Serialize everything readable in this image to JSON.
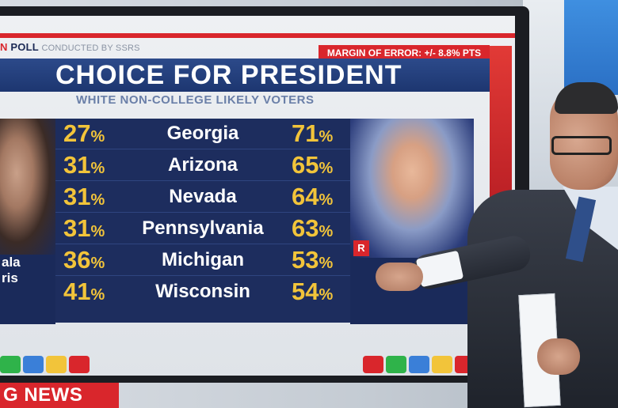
{
  "poll_label": {
    "prefix": "N",
    "main": "POLL",
    "suffix": "CONDUCTED BY SSRS"
  },
  "margin_of_error": "MARGIN OF ERROR: +/- 8.8% PTS",
  "title": "CHOICE FOR PRESIDENT",
  "subtitle": "WHITE NON-COLLEGE LIKELY VOTERS",
  "left_candidate": {
    "name_line1": "ala",
    "name_line2": "ris"
  },
  "right_candidate": {
    "badge": "R"
  },
  "rows": [
    {
      "state": "Georgia",
      "left": "27",
      "right": "71"
    },
    {
      "state": "Arizona",
      "left": "31",
      "right": "65"
    },
    {
      "state": "Nevada",
      "left": "31",
      "right": "64"
    },
    {
      "state": "Pennsylvania",
      "left": "31",
      "right": "63"
    },
    {
      "state": "Michigan",
      "left": "36",
      "right": "53"
    },
    {
      "state": "Wisconsin",
      "left": "41",
      "right": "54"
    }
  ],
  "percent_sign": "%",
  "ticker": "G NEWS",
  "colors": {
    "accent_red": "#d9262c",
    "navy": "#1d2d5e",
    "gold": "#f2c43a"
  },
  "dots_left": [
    "#2fb34a",
    "#3a7fd8",
    "#f2c43a",
    "#d9262c"
  ],
  "dots_right": [
    "#d9262c",
    "#2fb34a",
    "#3a7fd8",
    "#f2c43a",
    "#d9262c"
  ]
}
